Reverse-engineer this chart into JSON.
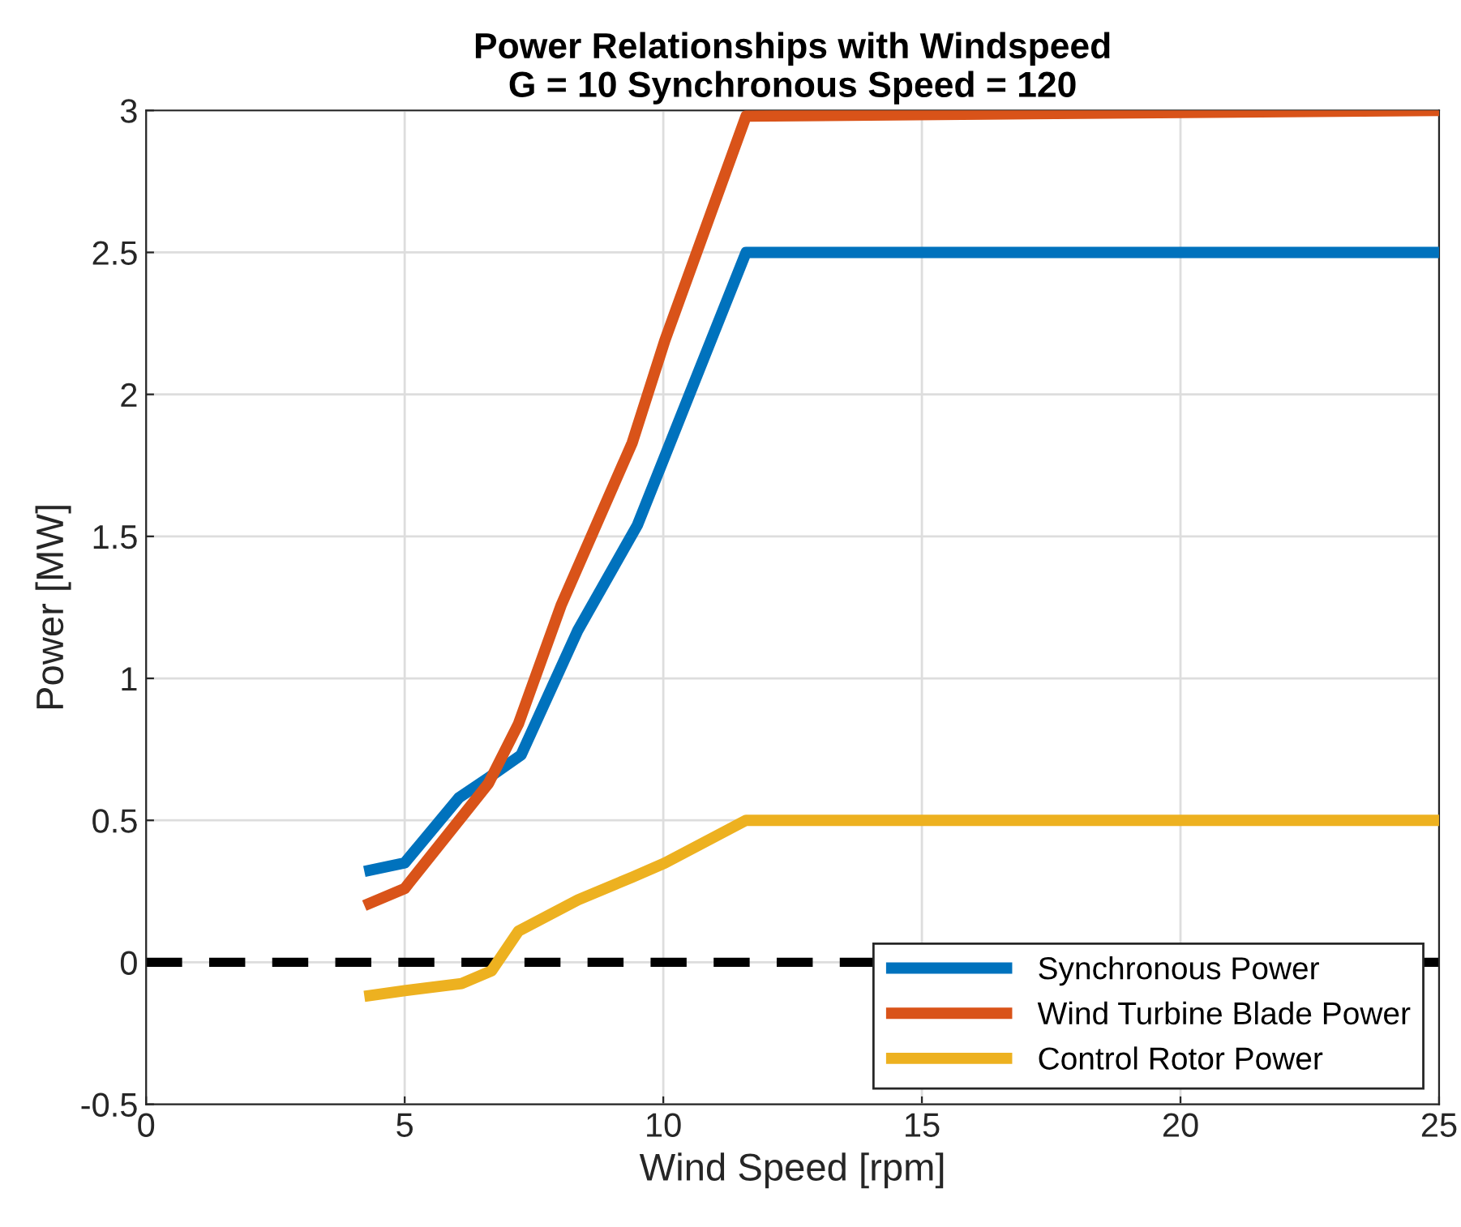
{
  "chart_data": {
    "type": "line",
    "title": "Power Relationships with Windspeed\nG = 10 Synchronous Speed = 120",
    "xlabel": "Wind Speed [rpm]",
    "ylabel": "Power [MW]",
    "xlim": [
      0,
      25
    ],
    "ylim": [
      -0.5,
      3
    ],
    "xticks": [
      0,
      5,
      10,
      15,
      20,
      25
    ],
    "yticks": [
      -0.5,
      0,
      0.5,
      1,
      1.5,
      2,
      2.5,
      3
    ],
    "grid": true,
    "legend": "bottom right",
    "line_style": "solid",
    "marker": "none",
    "series": [
      {
        "name": "Synchronous Power",
        "color": "#0072bd",
        "x": [
          4.22,
          5.0,
          6.05,
          6.62,
          7.25,
          8.35,
          9.5,
          11.6,
          25
        ],
        "values": [
          0.32,
          0.35,
          0.58,
          0.65,
          0.73,
          1.17,
          1.54,
          2.5,
          2.5
        ]
      },
      {
        "name": "Wind Turbine Blade Power",
        "color": "#d95319",
        "x": [
          4.22,
          5.0,
          6.62,
          7.2,
          8.03,
          9.4,
          10.03,
          11.6,
          25
        ],
        "values": [
          0.2,
          0.26,
          0.63,
          0.84,
          1.26,
          1.83,
          2.19,
          2.98,
          3.0
        ]
      },
      {
        "name": "Control Rotor Power",
        "color": "#edb120",
        "x": [
          4.22,
          5.0,
          6.1,
          6.68,
          7.2,
          8.35,
          9.4,
          10.03,
          11.6,
          25
        ],
        "values": [
          -0.12,
          -0.1,
          -0.075,
          -0.03,
          0.11,
          0.22,
          0.3,
          0.35,
          0.5,
          0.5
        ]
      }
    ],
    "ref_lines": [
      {
        "axis": "y",
        "value": 0,
        "color": "#000000",
        "line_style": "dashed"
      }
    ]
  }
}
